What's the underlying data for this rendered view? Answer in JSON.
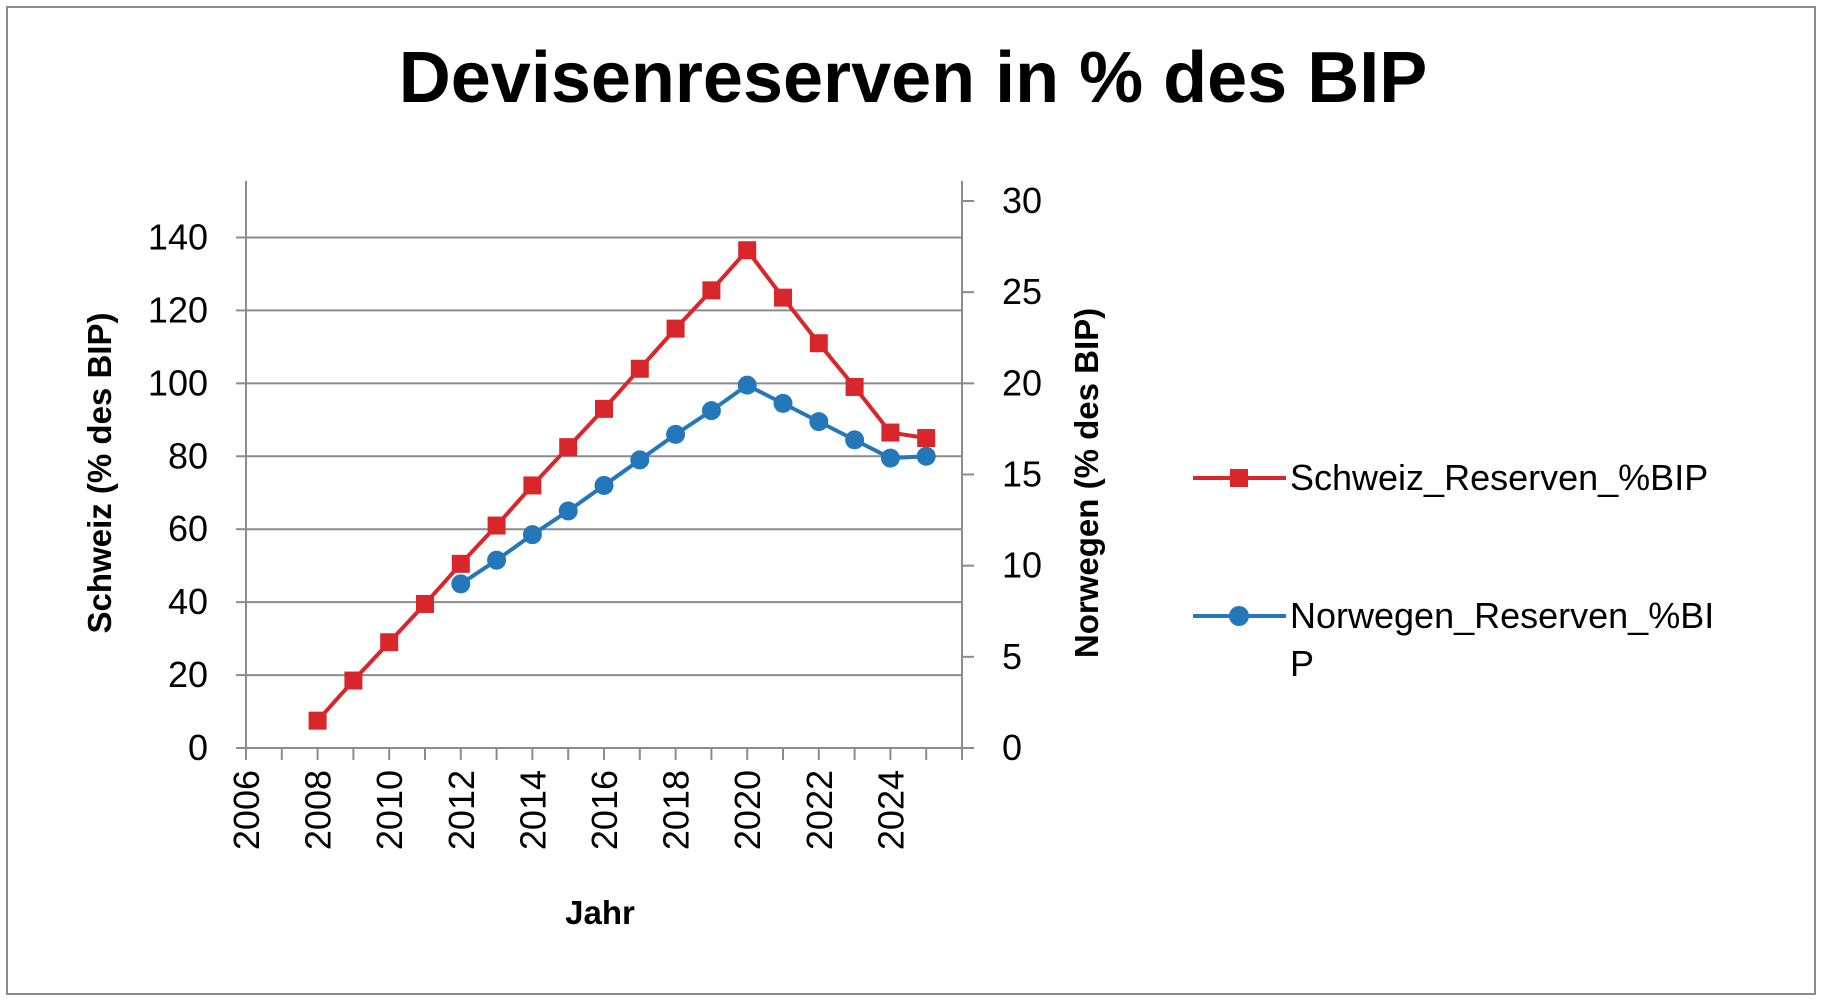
{
  "chart_data": {
    "type": "line",
    "title": "Devisenreserven in % des BIP",
    "xlabel": "Jahr",
    "ylabel_left": "Schweiz (% des BIP)",
    "ylabel_right": "Norwegen (% des BIP)",
    "xlim": [
      2006,
      2026
    ],
    "x_ticks": [
      "2006",
      "2008",
      "2010",
      "2012",
      "2014",
      "2016",
      "2018",
      "2020",
      "2022",
      "2024"
    ],
    "ylim_left": [
      0,
      150
    ],
    "y_ticks_left": [
      "0",
      "20",
      "40",
      "60",
      "80",
      "100",
      "120",
      "140"
    ],
    "ylim_right": [
      0,
      30
    ],
    "y_ticks_right": [
      "0",
      "5",
      "10",
      "15",
      "20",
      "25",
      "30"
    ],
    "grid": "horizontal",
    "legend_position": "right",
    "series": [
      {
        "name": "Schweiz_Reserven_%BIP",
        "axis": "left",
        "color": "#d9262b",
        "marker": "square",
        "x": [
          2008,
          2009,
          2010,
          2011,
          2012,
          2013,
          2014,
          2015,
          2016,
          2017,
          2018,
          2019,
          2020,
          2021,
          2022,
          2023,
          2024,
          2025
        ],
        "values": [
          7.5,
          18.5,
          29,
          39.5,
          50.5,
          61,
          72,
          82.5,
          93,
          104,
          115,
          125.5,
          136.5,
          123.5,
          111,
          99,
          86.5,
          85
        ]
      },
      {
        "name": "Norwegen_Reserven_%BIP",
        "axis": "right",
        "color": "#2477b8",
        "marker": "circle",
        "x": [
          2012,
          2013,
          2014,
          2015,
          2016,
          2017,
          2018,
          2019,
          2020,
          2021,
          2022,
          2023,
          2024,
          2025
        ],
        "values": [
          9,
          10.3,
          11.7,
          13,
          14.4,
          15.8,
          17.2,
          18.5,
          19.9,
          18.9,
          17.9,
          16.9,
          15.9,
          16
        ]
      }
    ]
  }
}
